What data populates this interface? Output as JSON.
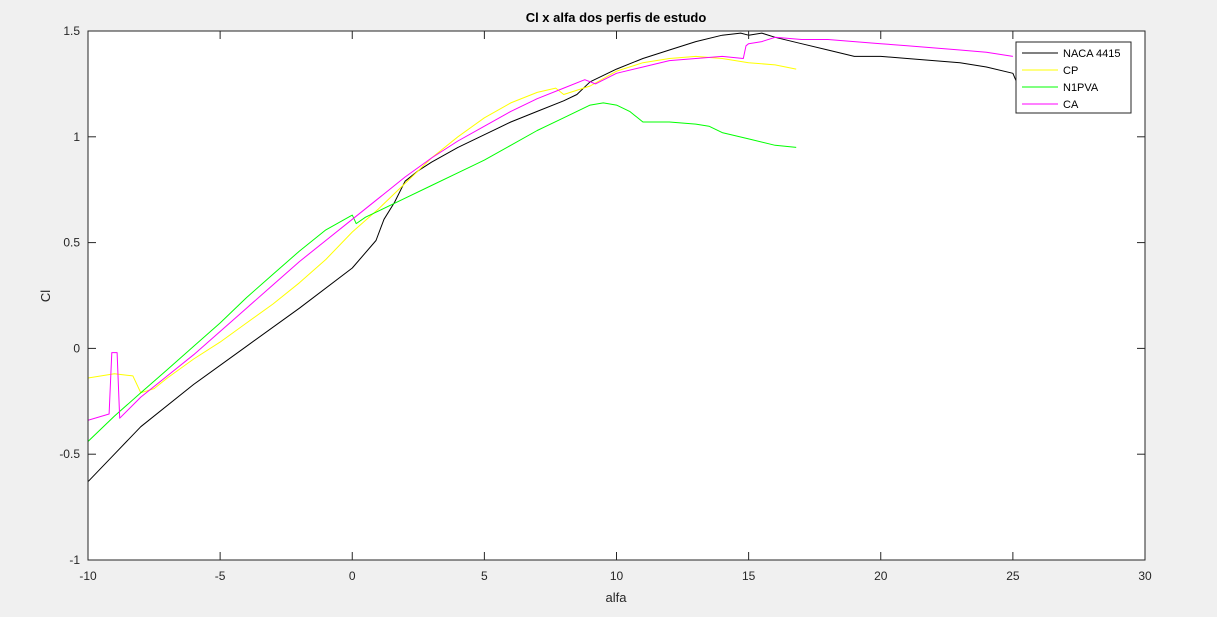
{
  "window": {
    "background": "#f0f0f0"
  },
  "chart_data": {
    "type": "line",
    "title": "Cl x alfa dos perfis de estudo",
    "xlabel": "alfa",
    "ylabel": "Cl",
    "xlim": [
      -10,
      30
    ],
    "ylim": [
      -1,
      1.5
    ],
    "xticks": [
      -10,
      -5,
      0,
      5,
      10,
      15,
      20,
      25,
      30
    ],
    "yticks": [
      -1,
      -0.5,
      0,
      0.5,
      1,
      1.5
    ],
    "xtick_labels": [
      "-10",
      "-5",
      "0",
      "5",
      "10",
      "15",
      "20",
      "25",
      "30"
    ],
    "ytick_labels": [
      "-1",
      "-0.5",
      "0",
      "0.5",
      "1",
      "1.5"
    ],
    "grid": false,
    "legend_position": "top-right",
    "series": [
      {
        "name": "NACA 4415",
        "color": "#000000",
        "x": [
          -10,
          -9,
          -8,
          -6,
          -4,
          -2,
          0,
          0.9,
          1.2,
          1.6,
          2,
          2.5,
          3,
          4,
          5,
          6,
          7,
          8,
          8.5,
          9,
          10,
          11,
          12,
          13,
          14,
          14.7,
          15,
          15.5,
          16,
          17,
          18,
          19,
          20,
          21,
          22,
          23,
          24,
          25,
          25.2
        ],
        "y": [
          -0.63,
          -0.5,
          -0.37,
          -0.17,
          0.01,
          0.19,
          0.38,
          0.51,
          0.61,
          0.69,
          0.79,
          0.84,
          0.88,
          0.95,
          1.01,
          1.07,
          1.12,
          1.17,
          1.2,
          1.26,
          1.32,
          1.37,
          1.41,
          1.45,
          1.48,
          1.49,
          1.48,
          1.49,
          1.47,
          1.44,
          1.41,
          1.38,
          1.38,
          1.37,
          1.36,
          1.35,
          1.33,
          1.3,
          1.24
        ]
      },
      {
        "name": "CP",
        "color": "#ffff00",
        "x": [
          -10,
          -9,
          -8.3,
          -8,
          -7.5,
          -7,
          -6,
          -5,
          -4,
          -3,
          -2,
          -1,
          0,
          1,
          2,
          3,
          4,
          5,
          6,
          7,
          7.7,
          8,
          9,
          10,
          11,
          12,
          13,
          14,
          15,
          16,
          16.8
        ],
        "y": [
          -0.14,
          -0.12,
          -0.13,
          -0.21,
          -0.19,
          -0.14,
          -0.05,
          0.03,
          0.12,
          0.21,
          0.31,
          0.42,
          0.55,
          0.66,
          0.78,
          0.9,
          1.0,
          1.09,
          1.16,
          1.21,
          1.23,
          1.2,
          1.24,
          1.31,
          1.35,
          1.37,
          1.38,
          1.37,
          1.35,
          1.34,
          1.32
        ]
      },
      {
        "name": "N1PVA",
        "color": "#00ff00",
        "x": [
          -10,
          -9,
          -8,
          -7,
          -6,
          -5,
          -4,
          -3,
          -2,
          -1,
          0,
          0.15,
          0.5,
          1,
          2,
          3,
          4,
          4.5,
          5,
          6,
          7,
          8,
          9,
          9.5,
          10,
          10.5,
          11,
          12,
          13,
          13.5,
          14,
          15,
          16,
          16.8
        ],
        "y": [
          -0.44,
          -0.32,
          -0.21,
          -0.1,
          0.01,
          0.12,
          0.24,
          0.35,
          0.46,
          0.56,
          0.63,
          0.59,
          0.62,
          0.65,
          0.71,
          0.77,
          0.83,
          0.86,
          0.89,
          0.96,
          1.03,
          1.09,
          1.15,
          1.16,
          1.15,
          1.12,
          1.07,
          1.07,
          1.06,
          1.05,
          1.02,
          0.99,
          0.96,
          0.95
        ]
      },
      {
        "name": "CA",
        "color": "#ff00ff",
        "x": [
          -10,
          -9.2,
          -9.1,
          -8.9,
          -8.8,
          -8,
          -7,
          -6,
          -5,
          -4,
          -3,
          -2,
          -1,
          0,
          1,
          2,
          3,
          4,
          5,
          6,
          7,
          8,
          8.8,
          9.2,
          10,
          11,
          12,
          13,
          14,
          14.8,
          14.9,
          15,
          15.5,
          16,
          17,
          18,
          19,
          20,
          21,
          22,
          23,
          24,
          25
        ],
        "y": [
          -0.34,
          -0.31,
          -0.02,
          -0.02,
          -0.33,
          -0.23,
          -0.13,
          -0.03,
          0.08,
          0.19,
          0.3,
          0.41,
          0.51,
          0.61,
          0.71,
          0.81,
          0.9,
          0.98,
          1.05,
          1.12,
          1.18,
          1.23,
          1.27,
          1.25,
          1.3,
          1.33,
          1.36,
          1.37,
          1.38,
          1.37,
          1.43,
          1.44,
          1.45,
          1.47,
          1.46,
          1.46,
          1.45,
          1.44,
          1.43,
          1.42,
          1.41,
          1.4,
          1.38
        ]
      }
    ]
  }
}
